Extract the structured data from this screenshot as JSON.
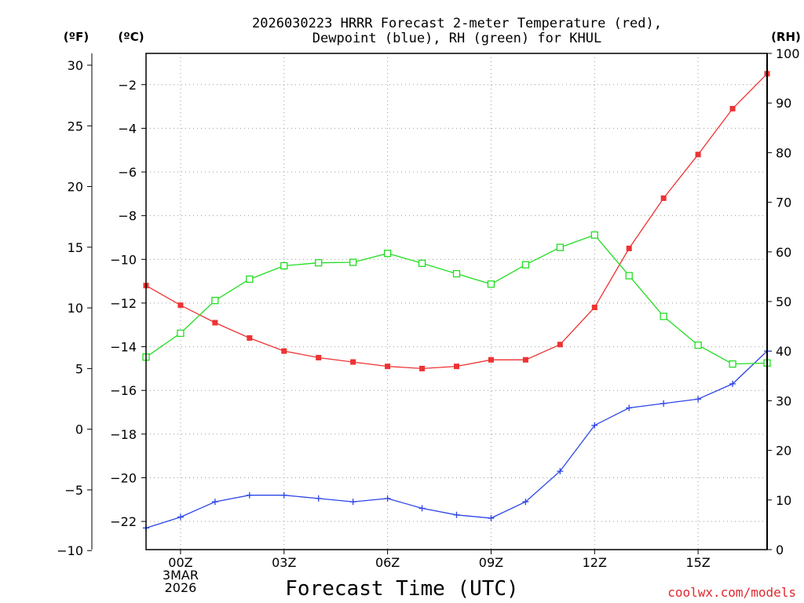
{
  "chart_data": {
    "type": "line",
    "title_lines": [
      "2026030223 HRRR Forecast 2-meter Temperature (red),",
      "Dewpoint (blue), RH (green) for KHUL"
    ],
    "xlabel": "Forecast Time (UTC)",
    "credit": "coolwx.com/models",
    "unit_labels": {
      "fahrenheit": "(ºF)",
      "celsius": "(ºC)",
      "rh": "(RH)"
    },
    "x": [
      -1,
      0,
      1,
      2,
      3,
      4,
      5,
      6,
      7,
      8,
      9,
      10,
      11,
      12,
      13,
      14,
      15,
      16,
      17
    ],
    "xlim": [
      -1,
      17
    ],
    "x_ticks": [
      {
        "x": 0,
        "lines": [
          "00Z",
          "3MAR",
          "2026"
        ]
      },
      {
        "x": 3,
        "lines": [
          "03Z"
        ]
      },
      {
        "x": 6,
        "lines": [
          "06Z"
        ]
      },
      {
        "x": 9,
        "lines": [
          "09Z"
        ]
      },
      {
        "x": 12,
        "lines": [
          "12Z"
        ]
      },
      {
        "x": 15,
        "lines": [
          "15Z"
        ]
      }
    ],
    "x_grid": [
      0,
      3,
      6,
      9,
      12,
      15
    ],
    "y_celsius": {
      "lim": [
        -23.29,
        -0.57
      ],
      "ticks": [
        -2,
        -4,
        -6,
        -8,
        -10,
        -12,
        -14,
        -16,
        -18,
        -20,
        -22
      ],
      "tick_labels": [
        "−2",
        "−4",
        "−6",
        "−8",
        "−10",
        "−12",
        "−14",
        "−16",
        "−18",
        "−20",
        "−22"
      ]
    },
    "y_fahrenheit": {
      "lim": [
        -9.92,
        30.97
      ],
      "ticks": [
        30,
        25,
        20,
        15,
        10,
        5,
        0,
        -5,
        -10
      ],
      "tick_labels": [
        "30",
        "25",
        "20",
        "15",
        "10",
        "5",
        "0",
        "−5",
        "−10"
      ]
    },
    "y_rh": {
      "lim": [
        0,
        100
      ],
      "ticks": [
        100,
        90,
        80,
        70,
        60,
        50,
        40,
        30,
        20,
        10,
        0
      ],
      "tick_labels": [
        "100",
        "90",
        "80",
        "70",
        "60",
        "50",
        "40",
        "30",
        "20",
        "10",
        "0"
      ]
    },
    "series": [
      {
        "name": "Temperature",
        "axis": "celsius",
        "color": "#ee3333",
        "marker": "filled-square",
        "values": [
          -11.2,
          -12.1,
          -12.9,
          -13.6,
          -14.2,
          -14.5,
          -14.7,
          -14.9,
          -15.0,
          -14.9,
          -14.6,
          -14.6,
          -13.9,
          -12.2,
          -9.5,
          -7.2,
          -5.2,
          -3.1,
          -1.5
        ]
      },
      {
        "name": "Dewpoint",
        "axis": "celsius",
        "color": "#2d45e8",
        "marker": "plus",
        "values": [
          -22.3,
          -21.8,
          -21.1,
          -20.8,
          -20.8,
          -20.95,
          -21.1,
          -20.95,
          -21.4,
          -21.7,
          -21.85,
          -21.1,
          -19.7,
          -17.6,
          -16.8,
          -16.6,
          -16.4,
          -15.7,
          -14.2
        ]
      },
      {
        "name": "RH",
        "axis": "rh",
        "color": "#22dd22",
        "marker": "open-square",
        "values": [
          38.8,
          43.6,
          50.2,
          54.5,
          57.2,
          57.8,
          57.9,
          59.7,
          57.7,
          55.6,
          53.5,
          57.4,
          60.9,
          63.4,
          55.2,
          47.0,
          41.2,
          37.4,
          37.6
        ]
      }
    ]
  }
}
